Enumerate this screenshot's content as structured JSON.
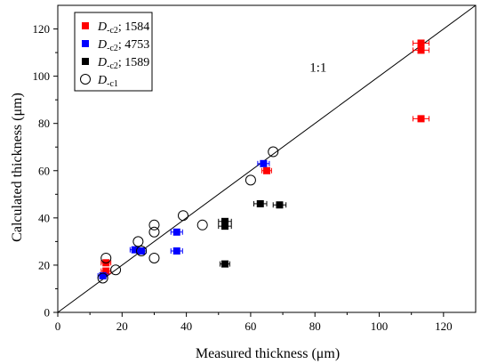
{
  "chart_data": {
    "type": "scatter",
    "title": "",
    "xlabel": "Measured thickness (μm)",
    "ylabel": "Calculated thickness (μm)",
    "xlim": [
      0,
      130
    ],
    "ylim": [
      0,
      130
    ],
    "xticks": [
      0,
      20,
      40,
      60,
      80,
      100,
      120
    ],
    "yticks": [
      0,
      20,
      40,
      60,
      80,
      100,
      120
    ],
    "grid": false,
    "legend_position": "top-left",
    "reference_line": {
      "label": "1:1",
      "slope": 1,
      "intercept": 0,
      "label_at": [
        81,
        102
      ]
    },
    "series": [
      {
        "name_main": "D",
        "name_sub": "-c2",
        "name_suffix": "; 1584",
        "marker": "square",
        "color": "#ff0000",
        "points": [
          {
            "x": 15,
            "y": 17.5,
            "xerr": 1.5
          },
          {
            "x": 15,
            "y": 21,
            "xerr": 1.5
          },
          {
            "x": 65,
            "y": 60,
            "xerr": 1.5
          },
          {
            "x": 113,
            "y": 114,
            "xerr": 2.5
          },
          {
            "x": 113,
            "y": 111,
            "xerr": 2.5
          },
          {
            "x": 113,
            "y": 82,
            "xerr": 2.5
          }
        ]
      },
      {
        "name_main": "D",
        "name_sub": "-c2",
        "name_suffix": "; 4753",
        "marker": "square",
        "color": "#0000ff",
        "points": [
          {
            "x": 14,
            "y": 15.5,
            "xerr": 1.5
          },
          {
            "x": 24,
            "y": 26.5,
            "xerr": 1.5
          },
          {
            "x": 26,
            "y": 26,
            "xerr": 1.5
          },
          {
            "x": 37,
            "y": 34,
            "xerr": 1.8
          },
          {
            "x": 37,
            "y": 26,
            "xerr": 1.8
          },
          {
            "x": 64,
            "y": 63,
            "xerr": 1.8
          }
        ]
      },
      {
        "name_main": "D",
        "name_sub": "-c2",
        "name_suffix": "; 1589",
        "marker": "square",
        "color": "#000000",
        "points": [
          {
            "x": 52,
            "y": 38.5,
            "xerr": 2
          },
          {
            "x": 52,
            "y": 36.5,
            "xerr": 2
          },
          {
            "x": 52,
            "y": 20.5,
            "xerr": 1.5
          },
          {
            "x": 63,
            "y": 46,
            "xerr": 2
          },
          {
            "x": 69,
            "y": 45.5,
            "xerr": 2
          }
        ]
      },
      {
        "name_main": "D",
        "name_sub": "-c1",
        "name_suffix": "",
        "marker": "open-circle",
        "color": "#000000",
        "points": [
          {
            "x": 14,
            "y": 14.5
          },
          {
            "x": 15,
            "y": 23
          },
          {
            "x": 18,
            "y": 18
          },
          {
            "x": 25,
            "y": 30
          },
          {
            "x": 26,
            "y": 26
          },
          {
            "x": 30,
            "y": 37
          },
          {
            "x": 30,
            "y": 34
          },
          {
            "x": 30,
            "y": 23
          },
          {
            "x": 39,
            "y": 41
          },
          {
            "x": 45,
            "y": 37
          },
          {
            "x": 60,
            "y": 56
          },
          {
            "x": 67,
            "y": 68
          }
        ]
      }
    ]
  }
}
